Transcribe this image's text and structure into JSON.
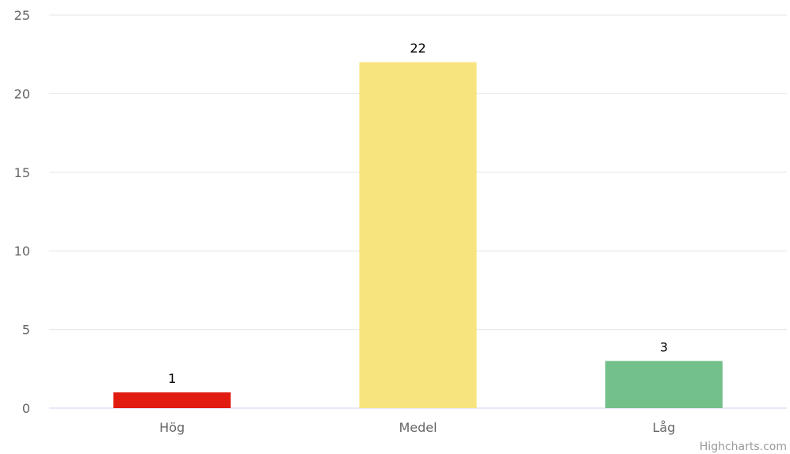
{
  "chart_data": {
    "type": "bar",
    "categories": [
      "Hög",
      "Medel",
      "Låg"
    ],
    "values": [
      1,
      22,
      3
    ],
    "colors": [
      "#e11b10",
      "#f7e47f",
      "#73c08b"
    ],
    "ylim": [
      0,
      25
    ],
    "yticks": [
      "0",
      "5",
      "10",
      "15",
      "20",
      "25"
    ],
    "grid": true,
    "legend": "none",
    "data_labels": [
      "1",
      "22",
      "3"
    ]
  },
  "credits": "Highcharts.com",
  "colors": {
    "grid": "#e6e6e6",
    "axis_line": "#ccd6eb",
    "tick_text": "#666666",
    "credits_text": "#999999"
  }
}
